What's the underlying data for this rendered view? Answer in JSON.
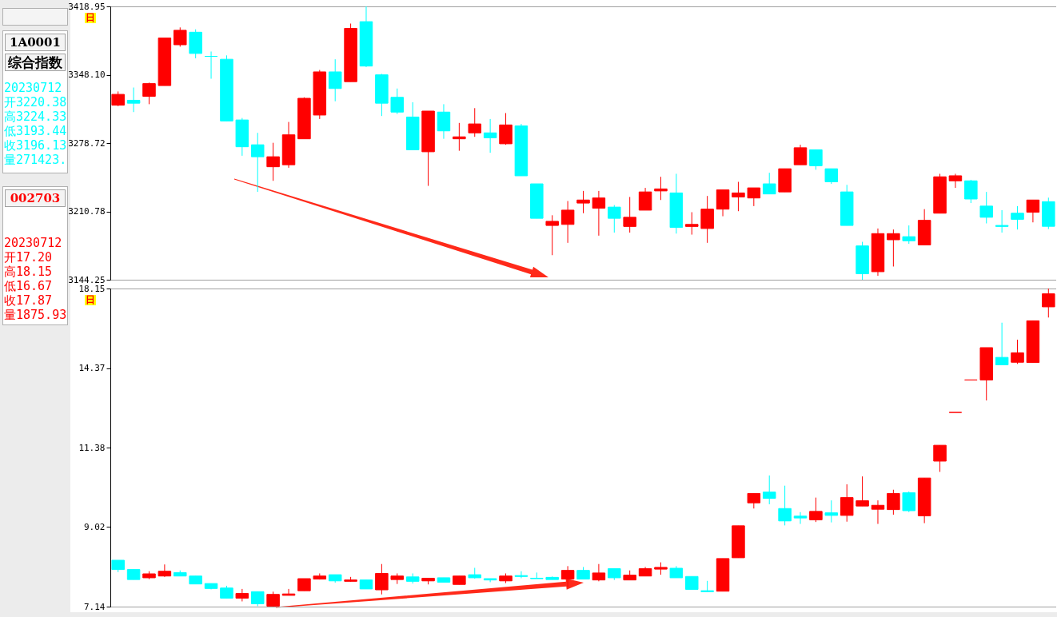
{
  "chart_data": [
    {
      "type": "candlestick",
      "log": true,
      "tick_labels": "y",
      "ylim": [
        3144.25,
        3418.95
      ],
      "yticks": [
        3144.25,
        3210.78,
        3278.72,
        {
          "value": 3348.1,
          "label": "3348.10"
        },
        3418.95
      ],
      "annotations": [
        "日",
        "1A0001",
        "综合指数",
        "20230712",
        "开3220.38",
        "高3224.33",
        "低3193.44",
        "收3196.13",
        "量271423."
      ],
      "categories": [
        null,
        null,
        null,
        null,
        null,
        null,
        null,
        null,
        null,
        null,
        null,
        null,
        null,
        null,
        null,
        null,
        null,
        null,
        null,
        null,
        null,
        null,
        null,
        null,
        null,
        null,
        null,
        null,
        null,
        null,
        null,
        null,
        null,
        null,
        null,
        null,
        null,
        null,
        null,
        null,
        null,
        null,
        null,
        null,
        null,
        null,
        null,
        null,
        null,
        null,
        null,
        null,
        null,
        null,
        null,
        null,
        null,
        null,
        null,
        null,
        null
      ],
      "ohlc": [
        [
          3317,
          3331,
          3316,
          3328
        ],
        [
          3322,
          3335,
          3310,
          3319
        ],
        [
          3326,
          3340,
          3318,
          3339
        ],
        [
          3337,
          3386,
          3337,
          3386
        ],
        [
          3379,
          3397,
          3377,
          3394
        ],
        [
          3392,
          3395,
          3365,
          3370
        ],
        [
          3367,
          3372,
          3344,
          3367
        ],
        [
          3364,
          3368,
          3301,
          3301
        ],
        [
          3302,
          3304,
          3266,
          3275
        ],
        [
          3277,
          3289,
          3230,
          3265
        ],
        [
          3255,
          3279,
          3241,
          3265
        ],
        [
          3257,
          3300,
          3254,
          3287
        ],
        [
          3283,
          3325,
          3283,
          3324
        ],
        [
          3307,
          3353,
          3303,
          3351
        ],
        [
          3351,
          3364,
          3321,
          3334
        ],
        [
          3341,
          3401,
          3341,
          3396
        ],
        [
          3403,
          3418.95,
          3356,
          3357
        ],
        [
          3348,
          3349,
          3306,
          3319
        ],
        [
          3325,
          3334,
          3308,
          3310
        ],
        [
          3305,
          3320,
          3272,
          3272
        ],
        [
          3270,
          3311,
          3236,
          3311
        ],
        [
          3310,
          3318,
          3283,
          3291
        ],
        [
          3283,
          3299,
          3271,
          3285
        ],
        [
          3289,
          3314,
          3285,
          3298
        ],
        [
          3289,
          3303,
          3269,
          3284
        ],
        [
          3278,
          3309,
          3277,
          3297
        ],
        [
          3296,
          3298,
          3246,
          3246
        ],
        [
          3238,
          3238,
          3204,
          3204
        ],
        [
          3197,
          3207,
          3168,
          3201
        ],
        [
          3198,
          3221,
          3180,
          3212
        ],
        [
          3219,
          3231,
          3209,
          3222
        ],
        [
          3214,
          3231,
          3187,
          3224
        ],
        [
          3215,
          3217,
          3190,
          3204
        ],
        [
          3196,
          3225,
          3190,
          3205
        ],
        [
          3212,
          3234,
          3212,
          3230
        ],
        [
          3231,
          3245,
          3222,
          3233
        ],
        [
          3229,
          3248,
          3189,
          3195
        ],
        [
          3196,
          3210,
          3188,
          3198
        ],
        [
          3194,
          3226,
          3180,
          3213
        ],
        [
          3213,
          3232,
          3206,
          3232
        ],
        [
          3225,
          3240,
          3211,
          3229
        ],
        [
          3224,
          3234,
          3216,
          3234
        ],
        [
          3238,
          3249,
          3228,
          3228
        ],
        [
          3230,
          3253,
          3230,
          3253
        ],
        [
          3257,
          3277,
          3257,
          3274
        ],
        [
          3272,
          3272,
          3252,
          3256
        ],
        [
          3253,
          3253,
          3238,
          3240
        ],
        [
          3230,
          3237,
          3197,
          3197
        ],
        [
          3177,
          3181,
          3144.25,
          3150
        ],
        [
          3152,
          3194,
          3148,
          3189
        ],
        [
          3183,
          3193,
          3157,
          3189
        ],
        [
          3186,
          3197,
          3179,
          3182
        ],
        [
          3178,
          3213,
          3178,
          3202
        ],
        [
          3209,
          3248,
          3209,
          3245
        ],
        [
          3241,
          3248,
          3234,
          3246
        ],
        [
          3241,
          3242,
          3219,
          3223
        ],
        [
          3216,
          3230,
          3199,
          3205
        ],
        [
          3197,
          3212,
          3190,
          3196
        ],
        [
          3209,
          3216,
          3193,
          3203
        ],
        [
          3210,
          3222,
          3200,
          3222
        ],
        [
          3220.38,
          3224.33,
          3193.44,
          3196.13
        ]
      ],
      "colors": [
        "#ff0000",
        "#00ffff",
        "#ff0000",
        "#ff0000",
        "#ff0000",
        "#00ffff",
        "#00ffff",
        "#00ffff",
        "#00ffff",
        "#00ffff",
        "#ff0000",
        "#ff0000",
        "#ff0000",
        "#ff0000",
        "#00ffff",
        "#ff0000",
        "#00ffff",
        "#00ffff",
        "#00ffff",
        "#00ffff",
        "#ff0000",
        "#00ffff",
        "#ff0000",
        "#ff0000",
        "#00ffff",
        "#ff0000",
        "#00ffff",
        "#00ffff",
        "#ff0000",
        "#ff0000",
        "#ff0000",
        "#ff0000",
        "#00ffff",
        "#ff0000",
        "#ff0000",
        "#ff0000",
        "#00ffff",
        "#ff0000",
        "#ff0000",
        "#ff0000",
        "#ff0000",
        "#ff0000",
        "#00ffff",
        "#ff0000",
        "#ff0000",
        "#00ffff",
        "#00ffff",
        "#00ffff",
        "#00ffff",
        "#ff0000",
        "#ff0000",
        "#00ffff",
        "#ff0000",
        "#ff0000",
        "#ff0000",
        "#00ffff",
        "#00ffff",
        "#00ffff",
        "#00ffff",
        "#ff0000",
        "#00ffff"
      ]
    },
    {
      "type": "candlestick",
      "log": true,
      "tick_labels": "y",
      "ylim": [
        7.14,
        18.15
      ],
      "yticks": [
        7.14,
        9.02,
        11.38,
        14.37,
        18.15
      ],
      "annotations": [
        "日",
        "002703",
        "20230712",
        "开17.20",
        "高18.15",
        "低16.67",
        "收17.87",
        "量1875.93"
      ],
      "categories": [
        null,
        null,
        null,
        null,
        null,
        null,
        null,
        null,
        null,
        null,
        null,
        null,
        null,
        null,
        null,
        null,
        null,
        null,
        null,
        null,
        null,
        null,
        null,
        null,
        null,
        null,
        null,
        null,
        null,
        null,
        null,
        null,
        null,
        null,
        null,
        null,
        null,
        null,
        null,
        null,
        null,
        null,
        null,
        null,
        null,
        null,
        null,
        null,
        null,
        null,
        null,
        null,
        null,
        null,
        null,
        null,
        null,
        null,
        null,
        null,
        null
      ],
      "ohlc": [
        [
          8.18,
          8.18,
          7.9,
          7.96
        ],
        [
          7.96,
          7.96,
          7.73,
          7.73
        ],
        [
          7.77,
          7.92,
          7.74,
          7.86
        ],
        [
          7.81,
          8.08,
          7.79,
          7.92
        ],
        [
          7.89,
          7.94,
          7.81,
          7.81
        ],
        [
          7.81,
          7.81,
          7.63,
          7.63
        ],
        [
          7.64,
          7.64,
          7.51,
          7.53
        ],
        [
          7.54,
          7.59,
          7.32,
          7.32
        ],
        [
          7.32,
          7.52,
          7.25,
          7.42
        ],
        [
          7.46,
          7.46,
          7.15,
          7.2
        ],
        [
          7.15,
          7.46,
          7.14,
          7.4
        ],
        [
          7.38,
          7.52,
          7.38,
          7.41
        ],
        [
          7.48,
          7.75,
          7.48,
          7.75
        ],
        [
          7.74,
          7.87,
          7.73,
          7.81
        ],
        [
          7.84,
          7.84,
          7.66,
          7.7
        ],
        [
          7.69,
          7.79,
          7.68,
          7.72
        ],
        [
          7.72,
          7.72,
          7.52,
          7.52
        ],
        [
          7.5,
          8.09,
          7.4,
          7.87
        ],
        [
          7.73,
          7.87,
          7.63,
          7.81
        ],
        [
          7.79,
          7.87,
          7.64,
          7.69
        ],
        [
          7.7,
          7.76,
          7.62,
          7.76
        ],
        [
          7.77,
          7.77,
          7.67,
          7.67
        ],
        [
          7.62,
          7.81,
          7.62,
          7.81
        ],
        [
          7.84,
          8,
          7.75,
          7.77
        ],
        [
          7.75,
          7.75,
          7.67,
          7.72
        ],
        [
          7.7,
          7.87,
          7.65,
          7.81
        ],
        [
          7.82,
          7.92,
          7.76,
          7.8
        ],
        [
          7.76,
          7.89,
          7.75,
          7.75
        ],
        [
          7.78,
          7.8,
          7.73,
          7.73
        ],
        [
          7.74,
          8.04,
          7.56,
          7.94
        ],
        [
          7.94,
          8.02,
          7.74,
          7.74
        ],
        [
          7.72,
          8.09,
          7.69,
          7.88
        ],
        [
          7.98,
          7.98,
          7.72,
          7.77
        ],
        [
          7.72,
          7.94,
          7.72,
          7.83
        ],
        [
          7.81,
          8.02,
          7.81,
          7.98
        ],
        [
          7.97,
          8.13,
          7.84,
          8.01
        ],
        [
          7.99,
          8.04,
          7.77,
          7.77
        ],
        [
          7.8,
          7.8,
          7.51,
          7.51
        ],
        [
          7.48,
          7.7,
          7.46,
          7.46
        ],
        [
          7.47,
          8.22,
          7.47,
          8.22
        ],
        [
          8.24,
          9.05,
          8.24,
          9.05
        ],
        [
          9.68,
          9.95,
          9.52,
          9.95
        ],
        [
          9.99,
          10.49,
          9.64,
          9.81
        ],
        [
          9.52,
          10.18,
          9.06,
          9.18
        ],
        [
          9.31,
          9.42,
          9.1,
          9.26
        ],
        [
          9.21,
          9.83,
          9.15,
          9.44
        ],
        [
          9.4,
          9.75,
          9.14,
          9.33
        ],
        [
          9.33,
          10.22,
          9.16,
          9.83
        ],
        [
          9.59,
          10.46,
          9.59,
          9.74
        ],
        [
          9.5,
          9.75,
          9.1,
          9.61
        ],
        [
          9.49,
          10.06,
          9.35,
          9.95
        ],
        [
          9.97,
          10.01,
          9.42,
          9.46
        ],
        [
          9.32,
          10.41,
          9.12,
          10.41
        ],
        [
          10.94,
          11.46,
          10.6,
          11.46
        ],
        [
          12.62,
          12.62,
          12.62,
          12.62
        ],
        [
          13.88,
          13.88,
          13.88,
          13.88
        ],
        [
          13.88,
          15.26,
          13.07,
          15.26
        ],
        [
          14.83,
          16.42,
          14.51,
          14.51
        ],
        [
          14.62,
          15.62,
          14.55,
          15.03
        ],
        [
          14.61,
          16.51,
          14.61,
          16.51
        ],
        [
          17.2,
          18.15,
          16.67,
          17.87
        ]
      ],
      "colors": [
        "#00ffff",
        "#00ffff",
        "#ff0000",
        "#ff0000",
        "#00ffff",
        "#00ffff",
        "#00ffff",
        "#00ffff",
        "#ff0000",
        "#00ffff",
        "#ff0000",
        "#ff0000",
        "#ff0000",
        "#ff0000",
        "#00ffff",
        "#ff0000",
        "#00ffff",
        "#ff0000",
        "#ff0000",
        "#00ffff",
        "#ff0000",
        "#00ffff",
        "#ff0000",
        "#00ffff",
        "#00ffff",
        "#ff0000",
        "#00ffff",
        "#00ffff",
        "#00ffff",
        "#ff0000",
        "#00ffff",
        "#ff0000",
        "#00ffff",
        "#ff0000",
        "#ff0000",
        "#ff0000",
        "#00ffff",
        "#00ffff",
        "#00ffff",
        "#ff0000",
        "#ff0000",
        "#ff0000",
        "#00ffff",
        "#00ffff",
        "#00ffff",
        "#ff0000",
        "#00ffff",
        "#ff0000",
        "#ff0000",
        "#ff0000",
        "#ff0000",
        "#00ffff",
        "#ff0000",
        "#ff0000",
        "#ff0000",
        "#ff0000",
        "#ff0000",
        "#00ffff",
        "#ff0000",
        "#ff0000",
        "#ff0000"
      ]
    }
  ]
}
